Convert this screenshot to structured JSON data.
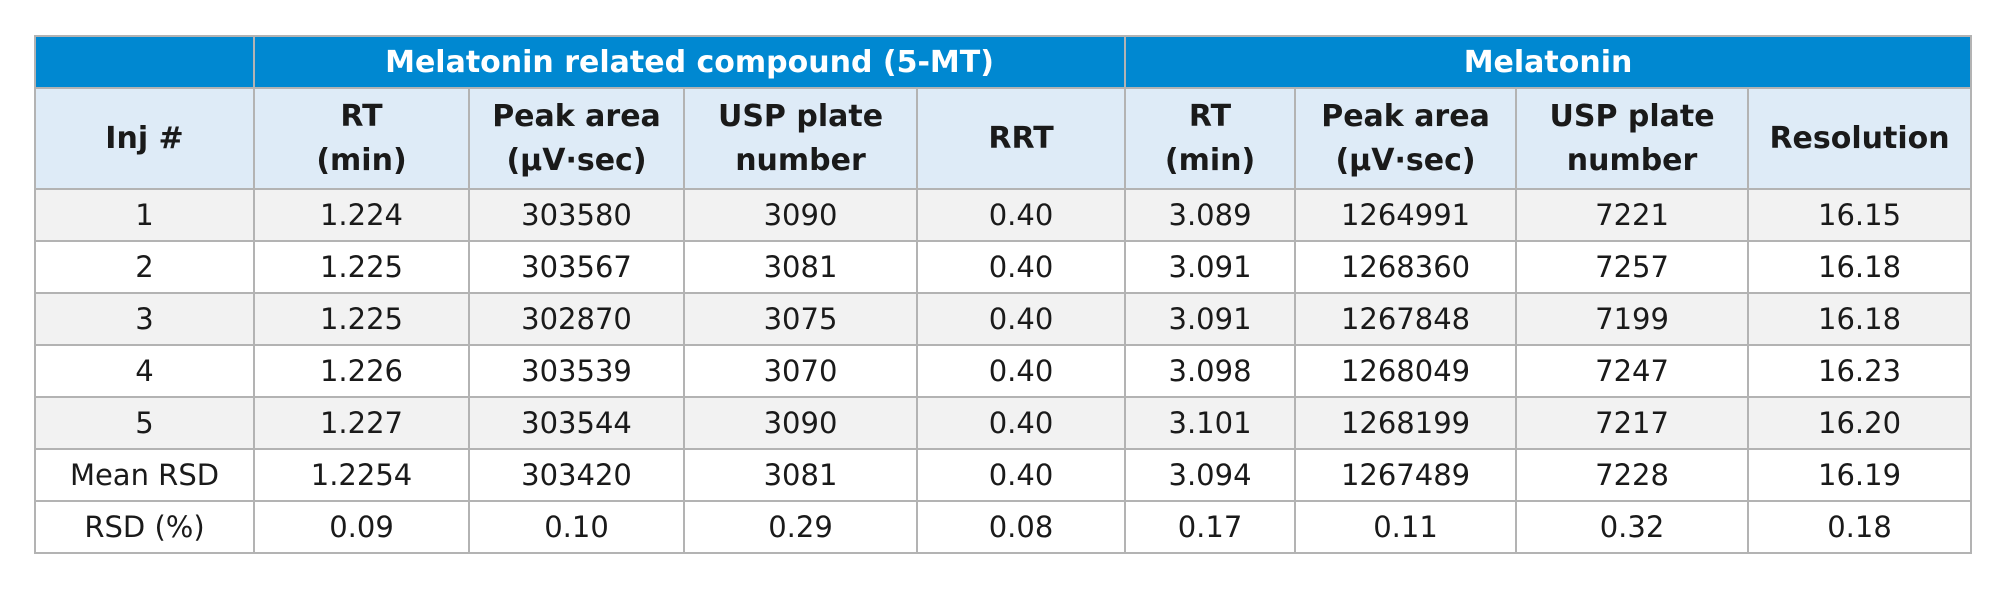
{
  "group_headers": {
    "blank": "",
    "compound_5mt": "Melatonin related compound (5-MT)",
    "melatonin": "Melatonin"
  },
  "column_headers": {
    "inj": [
      "Inj #"
    ],
    "rt_5mt": [
      "RT",
      "(min)"
    ],
    "area_5mt": [
      "Peak area",
      "(µV·sec)"
    ],
    "usp_5mt": [
      "USP plate",
      "number"
    ],
    "rrt_5mt": [
      "RRT"
    ],
    "rt_mel": [
      "RT",
      "(min)"
    ],
    "area_mel": [
      "Peak area",
      "(µV·sec)"
    ],
    "usp_mel": [
      "USP plate",
      "number"
    ],
    "resolution_mel": [
      "Resolution"
    ]
  },
  "rows": [
    [
      "1",
      "1.224",
      "303580",
      "3090",
      "0.40",
      "3.089",
      "1264991",
      "7221",
      "16.15"
    ],
    [
      "2",
      "1.225",
      "303567",
      "3081",
      "0.40",
      "3.091",
      "1268360",
      "7257",
      "16.18"
    ],
    [
      "3",
      "1.225",
      "302870",
      "3075",
      "0.40",
      "3.091",
      "1267848",
      "7199",
      "16.18"
    ],
    [
      "4",
      "1.226",
      "303539",
      "3070",
      "0.40",
      "3.098",
      "1268049",
      "7247",
      "16.23"
    ],
    [
      "5",
      "1.227",
      "303544",
      "3090",
      "0.40",
      "3.101",
      "1268199",
      "7217",
      "16.20"
    ]
  ],
  "summary_rows": [
    [
      "Mean RSD",
      "1.2254",
      "303420",
      "3081",
      "0.40",
      "3.094",
      "1267489",
      "7228",
      "16.19"
    ],
    [
      "RSD (%)",
      "0.09",
      "0.10",
      "0.29",
      "0.08",
      "0.17",
      "0.11",
      "0.32",
      "0.18"
    ]
  ],
  "colors": {
    "group_header_bg": "#0088d1",
    "column_header_bg": "#deebf7",
    "shaded_row_bg": "#f2f2f2",
    "border": "#b3b3b3"
  }
}
